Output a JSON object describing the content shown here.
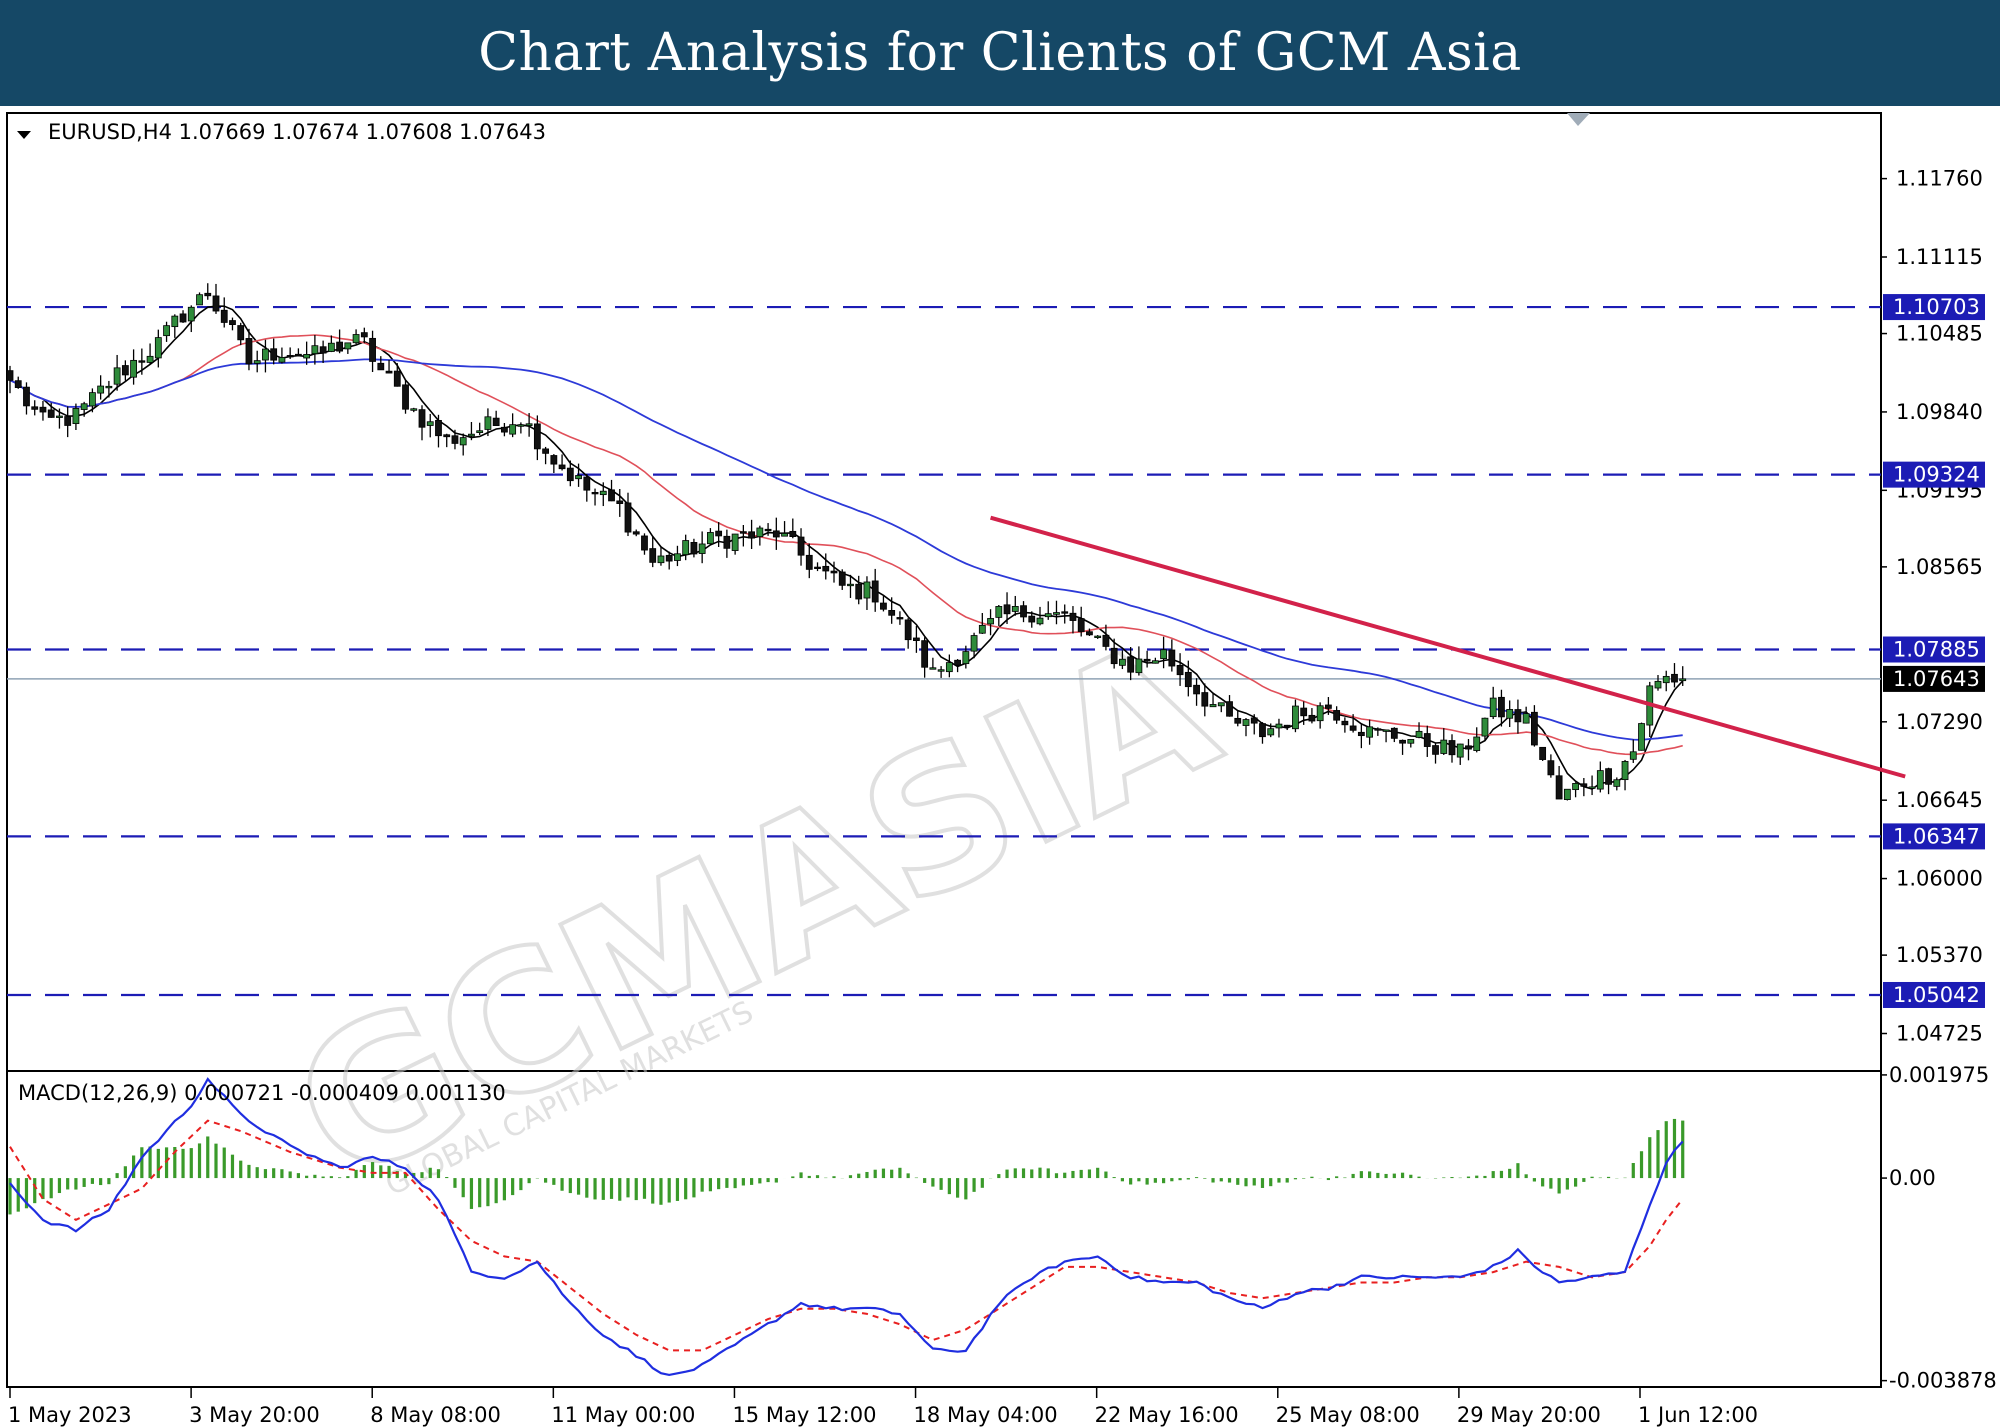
{
  "header": {
    "title": "Chart Analysis for Clients of GCM Asia"
  },
  "watermark": {
    "brand": "GCMASIA",
    "tagline": "GLOBAL CAPITAL MARKETS"
  },
  "chart_data": [
    {
      "type": "candlestick",
      "symbol_info": "EURUSD,H4  1.07669 1.07674 1.07608 1.07643",
      "ylim": [
        1.044,
        1.123
      ],
      "y_ticks": [
        {
          "v": 1.1176,
          "label": "1.11760"
        },
        {
          "v": 1.11115,
          "label": "1.11115"
        },
        {
          "v": 1.10485,
          "label": "1.10485"
        },
        {
          "v": 1.0984,
          "label": "1.09840"
        },
        {
          "v": 1.09195,
          "label": "1.09195"
        },
        {
          "v": 1.08565,
          "label": "1.08565"
        },
        {
          "v": 1.0729,
          "label": "1.07290"
        },
        {
          "v": 1.06645,
          "label": "1.06645"
        },
        {
          "v": 1.06,
          "label": "1.06000"
        },
        {
          "v": 1.0537,
          "label": "1.05370"
        },
        {
          "v": 1.04725,
          "label": "1.04725"
        }
      ],
      "levels": [
        {
          "v": 1.10703,
          "label": "1.10703"
        },
        {
          "v": 1.09324,
          "label": "1.09324"
        },
        {
          "v": 1.07885,
          "label": "1.07885"
        },
        {
          "v": 1.06347,
          "label": "1.06347"
        },
        {
          "v": 1.05042,
          "label": "1.05042"
        }
      ],
      "current_price": {
        "v": 1.07643,
        "label": "1.07643"
      },
      "x_labels": [
        "1 May 2023",
        "3 May 20:00",
        "8 May 08:00",
        "11 May 00:00",
        "15 May 12:00",
        "18 May 04:00",
        "22 May 16:00",
        "25 May 08:00",
        "29 May 20:00",
        "1 Jun 12:00"
      ],
      "key_closes": [
        [
          0,
          1.101
        ],
        [
          4,
          1.0975
        ],
        [
          8,
          1.098
        ],
        [
          13,
          1.1015
        ],
        [
          18,
          1.104
        ],
        [
          21,
          1.1065
        ],
        [
          24,
          1.1082
        ],
        [
          26,
          1.106
        ],
        [
          29,
          1.1025
        ],
        [
          33,
          1.1035
        ],
        [
          37,
          1.103
        ],
        [
          41,
          1.1042
        ],
        [
          43,
          1.104
        ],
        [
          45,
          1.1018
        ],
        [
          49,
          1.0985
        ],
        [
          53,
          1.096
        ],
        [
          57,
          1.097
        ],
        [
          62,
          1.098
        ],
        [
          66,
          1.0945
        ],
        [
          70,
          1.092
        ],
        [
          74,
          1.0905
        ],
        [
          78,
          1.086
        ],
        [
          82,
          1.087
        ],
        [
          86,
          1.088
        ],
        [
          90,
          1.0882
        ],
        [
          93,
          1.0885
        ],
        [
          97,
          1.086
        ],
        [
          101,
          1.084
        ],
        [
          105,
          1.0835
        ],
        [
          109,
          1.08
        ],
        [
          112,
          1.0768
        ],
        [
          116,
          1.079
        ],
        [
          120,
          1.0815
        ],
        [
          124,
          1.082
        ],
        [
          128,
          1.0815
        ],
        [
          132,
          1.0792
        ],
        [
          136,
          1.0775
        ],
        [
          140,
          1.0785
        ],
        [
          144,
          1.0755
        ],
        [
          148,
          1.073
        ],
        [
          152,
          1.072
        ],
        [
          156,
          1.0735
        ],
        [
          160,
          1.0742
        ],
        [
          165,
          1.072
        ],
        [
          168,
          1.0718
        ],
        [
          172,
          1.0712
        ],
        [
          176,
          1.0702
        ],
        [
          180,
          1.074
        ],
        [
          184,
          1.073
        ],
        [
          188,
          1.0665
        ],
        [
          191,
          1.068
        ],
        [
          195,
          1.0688
        ],
        [
          197,
          1.0705
        ],
        [
          199,
          1.0755
        ],
        [
          201,
          1.0765
        ],
        [
          203,
          1.0764
        ]
      ],
      "trendline": {
        "from": [
          119,
          1.0897
        ],
        "to": [
          230,
          1.0684
        ]
      }
    },
    {
      "type": "line",
      "title": "MACD(12,26,9) 0.000721 -0.000409 0.001130",
      "ylim": [
        -0.004,
        0.00205
      ],
      "y_ticks": [
        {
          "v": 0.001975,
          "label": "0.001975"
        },
        {
          "v": 0.0,
          "label": "0.00"
        },
        {
          "v": -0.003878,
          "label": "-0.003878"
        }
      ],
      "macd_keys": [
        [
          0,
          -0.0001
        ],
        [
          4,
          -0.0008
        ],
        [
          8,
          -0.001
        ],
        [
          12,
          -0.0006
        ],
        [
          16,
          0.0004
        ],
        [
          22,
          0.0014
        ],
        [
          24,
          0.0019
        ],
        [
          28,
          0.0012
        ],
        [
          34,
          0.0006
        ],
        [
          40,
          0.0002
        ],
        [
          44,
          0.0004
        ],
        [
          48,
          0.0002
        ],
        [
          52,
          -0.0004
        ],
        [
          56,
          -0.0018
        ],
        [
          60,
          -0.0019
        ],
        [
          64,
          -0.0016
        ],
        [
          68,
          -0.0024
        ],
        [
          72,
          -0.003
        ],
        [
          76,
          -0.0034
        ],
        [
          80,
          -0.0038
        ],
        [
          84,
          -0.0036
        ],
        [
          88,
          -0.0032
        ],
        [
          92,
          -0.0028
        ],
        [
          96,
          -0.0024
        ],
        [
          100,
          -0.0025
        ],
        [
          104,
          -0.0025
        ],
        [
          108,
          -0.0026
        ],
        [
          112,
          -0.0033
        ],
        [
          116,
          -0.0033
        ],
        [
          120,
          -0.0024
        ],
        [
          124,
          -0.0019
        ],
        [
          128,
          -0.0016
        ],
        [
          132,
          -0.0015
        ],
        [
          136,
          -0.0019
        ],
        [
          140,
          -0.002
        ],
        [
          144,
          -0.002
        ],
        [
          148,
          -0.0023
        ],
        [
          152,
          -0.0025
        ],
        [
          156,
          -0.0022
        ],
        [
          160,
          -0.0021
        ],
        [
          164,
          -0.0019
        ],
        [
          168,
          -0.0019
        ],
        [
          172,
          -0.0019
        ],
        [
          176,
          -0.0019
        ],
        [
          180,
          -0.0017
        ],
        [
          183,
          -0.0014
        ],
        [
          186,
          -0.0018
        ],
        [
          188,
          -0.002
        ],
        [
          192,
          -0.0019
        ],
        [
          196,
          -0.0018
        ],
        [
          199,
          -0.0005
        ],
        [
          201,
          0.0003
        ],
        [
          203,
          0.0007
        ]
      ],
      "signal_keys": [
        [
          0,
          0.0006
        ],
        [
          4,
          -0.0004
        ],
        [
          8,
          -0.0008
        ],
        [
          12,
          -0.0005
        ],
        [
          16,
          -0.0002
        ],
        [
          20,
          0.0005
        ],
        [
          24,
          0.0011
        ],
        [
          28,
          0.0009
        ],
        [
          34,
          0.0005
        ],
        [
          40,
          0.0002
        ],
        [
          44,
          0.0001
        ],
        [
          48,
          0.0001
        ],
        [
          52,
          -0.0006
        ],
        [
          56,
          -0.0012
        ],
        [
          60,
          -0.0015
        ],
        [
          64,
          -0.0016
        ],
        [
          68,
          -0.0021
        ],
        [
          72,
          -0.0026
        ],
        [
          76,
          -0.003
        ],
        [
          80,
          -0.0033
        ],
        [
          84,
          -0.0033
        ],
        [
          88,
          -0.003
        ],
        [
          92,
          -0.0027
        ],
        [
          96,
          -0.0025
        ],
        [
          100,
          -0.0025
        ],
        [
          104,
          -0.0026
        ],
        [
          108,
          -0.0028
        ],
        [
          112,
          -0.0031
        ],
        [
          116,
          -0.0029
        ],
        [
          120,
          -0.0025
        ],
        [
          124,
          -0.0021
        ],
        [
          128,
          -0.0017
        ],
        [
          132,
          -0.0017
        ],
        [
          136,
          -0.0018
        ],
        [
          140,
          -0.0019
        ],
        [
          144,
          -0.002
        ],
        [
          148,
          -0.0022
        ],
        [
          152,
          -0.0023
        ],
        [
          156,
          -0.0022
        ],
        [
          160,
          -0.0021
        ],
        [
          164,
          -0.002
        ],
        [
          168,
          -0.002
        ],
        [
          172,
          -0.0019
        ],
        [
          176,
          -0.0019
        ],
        [
          180,
          -0.0018
        ],
        [
          184,
          -0.0016
        ],
        [
          188,
          -0.0017
        ],
        [
          192,
          -0.0019
        ],
        [
          196,
          -0.0018
        ],
        [
          199,
          -0.0013
        ],
        [
          201,
          -0.0008
        ],
        [
          203,
          -0.0004
        ]
      ]
    }
  ],
  "colors": {
    "banner": "#154866",
    "bull_candle": "#2e8b3a",
    "bear_candle": "#111111",
    "ma_fast": "#000000",
    "ma_mid": "#e0505a",
    "ma_slow": "#2d3ad8",
    "levels": "#1c1cb5",
    "trendline": "#d2224a",
    "macd_line": "#1f2ee0",
    "macd_signal": "#e82020",
    "macd_hist": "#3a9a2a",
    "current_line": "#8fa2b5"
  }
}
